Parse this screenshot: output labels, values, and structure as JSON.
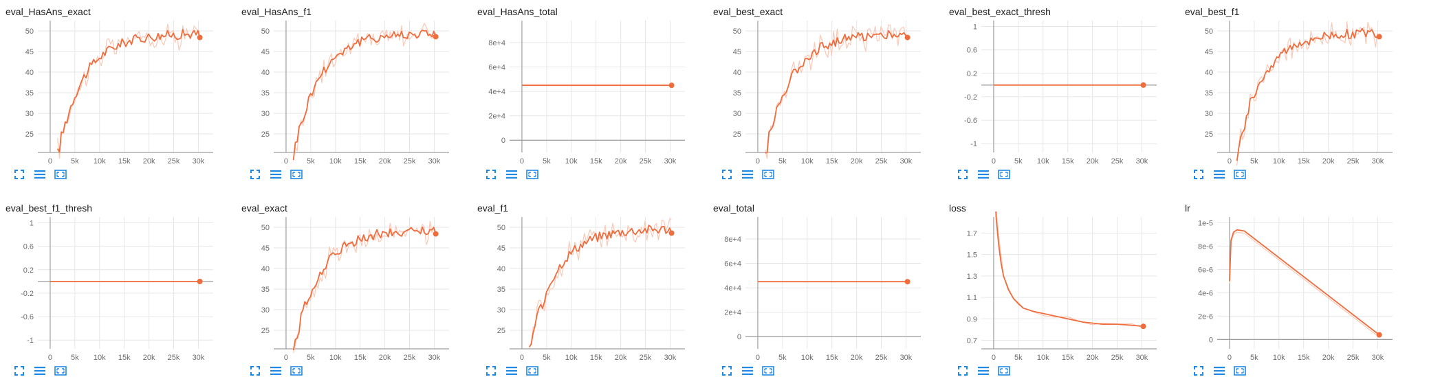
{
  "colors": {
    "line": "#ef6c3d",
    "raw": "#f9c9b7",
    "axis": "#9e9e9e",
    "grid": "#e6e6e6",
    "icon": "#1e88e5"
  },
  "toolbar_icons": [
    "fullscreen-icon",
    "data-table-icon",
    "fit-domain-icon"
  ],
  "chart_data": [
    {
      "title": "eval_HasAns_exact",
      "type": "line",
      "grid": true,
      "xticks": [
        "0",
        "5k",
        "10k",
        "15k",
        "20k",
        "25k",
        "30k"
      ],
      "xticks_values": [
        0,
        5000,
        10000,
        15000,
        20000,
        25000,
        30000
      ],
      "xlim": [
        -2500,
        33000
      ],
      "yticks": [
        "25",
        "30",
        "35",
        "40",
        "45",
        "50"
      ],
      "yticks_values": [
        25,
        30,
        35,
        40,
        45,
        50
      ],
      "ylim": [
        20.5,
        52.5
      ],
      "series": [
        {
          "shape": "eval",
          "start_y": 20,
          "end_y": 48.4
        }
      ]
    },
    {
      "title": "eval_HasAns_f1",
      "type": "line",
      "grid": true,
      "xticks": [
        "0",
        "5k",
        "10k",
        "15k",
        "20k",
        "25k",
        "30k"
      ],
      "xticks_values": [
        0,
        5000,
        10000,
        15000,
        20000,
        25000,
        30000
      ],
      "xlim": [
        -2500,
        33000
      ],
      "yticks": [
        "25",
        "30",
        "35",
        "40",
        "45",
        "50"
      ],
      "yticks_values": [
        25,
        30,
        35,
        40,
        45,
        50
      ],
      "ylim": [
        20.5,
        52.5
      ],
      "series": [
        {
          "shape": "eval",
          "start_y": 20,
          "end_y": 48.6
        }
      ]
    },
    {
      "title": "eval_HasAns_total",
      "type": "line",
      "grid": true,
      "xticks": [
        "0",
        "5k",
        "10k",
        "15k",
        "20k",
        "25k",
        "30k"
      ],
      "xticks_values": [
        0,
        5000,
        10000,
        15000,
        20000,
        25000,
        30000
      ],
      "xlim": [
        -2500,
        33000
      ],
      "yticks": [
        "0",
        "2e+4",
        "4e+4",
        "6e+4",
        "8e+4"
      ],
      "yticks_values": [
        0,
        20000,
        40000,
        60000,
        80000
      ],
      "ylim": [
        -10000,
        98000
      ],
      "series": [
        {
          "shape": "flat",
          "value": 45000,
          "x_start": 0,
          "x_end": 30300
        }
      ]
    },
    {
      "title": "eval_best_exact",
      "type": "line",
      "grid": true,
      "xticks": [
        "0",
        "5k",
        "10k",
        "15k",
        "20k",
        "25k",
        "30k"
      ],
      "xticks_values": [
        0,
        5000,
        10000,
        15000,
        20000,
        25000,
        30000
      ],
      "xlim": [
        -2500,
        33000
      ],
      "yticks": [
        "25",
        "30",
        "35",
        "40",
        "45",
        "50"
      ],
      "yticks_values": [
        25,
        30,
        35,
        40,
        45,
        50
      ],
      "ylim": [
        20.5,
        52.5
      ],
      "series": [
        {
          "shape": "eval",
          "start_y": 20,
          "end_y": 48.4
        }
      ]
    },
    {
      "title": "eval_best_exact_thresh",
      "type": "line",
      "grid": true,
      "xticks": [
        "0",
        "5k",
        "10k",
        "15k",
        "20k",
        "25k",
        "30k"
      ],
      "xticks_values": [
        0,
        5000,
        10000,
        15000,
        20000,
        25000,
        30000
      ],
      "xlim": [
        -2500,
        33000
      ],
      "yticks": [
        "-1",
        "-0.6",
        "-0.2",
        "0.2",
        "0.6",
        "1"
      ],
      "yticks_values": [
        -1,
        -0.6,
        -0.2,
        0.2,
        0.6,
        1
      ],
      "ylim": [
        -1.15,
        1.1
      ],
      "series": [
        {
          "shape": "flat",
          "value": 0,
          "x_start": 0,
          "x_end": 30300
        }
      ]
    },
    {
      "title": "eval_best_f1",
      "type": "line",
      "grid": true,
      "xticks": [
        "0",
        "5k",
        "10k",
        "15k",
        "20k",
        "25k",
        "30k"
      ],
      "xticks_values": [
        0,
        5000,
        10000,
        15000,
        20000,
        25000,
        30000
      ],
      "xlim": [
        -2500,
        33000
      ],
      "yticks": [
        "25",
        "30",
        "35",
        "40",
        "45",
        "50"
      ],
      "yticks_values": [
        25,
        30,
        35,
        40,
        45,
        50
      ],
      "ylim": [
        20.5,
        52.5
      ],
      "series": [
        {
          "shape": "eval",
          "start_y": 20,
          "end_y": 48.6
        }
      ]
    },
    {
      "title": "eval_best_f1_thresh",
      "type": "line",
      "grid": true,
      "xticks": [
        "0",
        "5k",
        "10k",
        "15k",
        "20k",
        "25k",
        "30k"
      ],
      "xticks_values": [
        0,
        5000,
        10000,
        15000,
        20000,
        25000,
        30000
      ],
      "xlim": [
        -2500,
        33000
      ],
      "yticks": [
        "-1",
        "-0.6",
        "-0.2",
        "0.2",
        "0.6",
        "1"
      ],
      "yticks_values": [
        -1,
        -0.6,
        -0.2,
        0.2,
        0.6,
        1
      ],
      "ylim": [
        -1.15,
        1.1
      ],
      "series": [
        {
          "shape": "flat",
          "value": 0,
          "x_start": 0,
          "x_end": 30300
        }
      ]
    },
    {
      "title": "eval_exact",
      "type": "line",
      "grid": true,
      "xticks": [
        "0",
        "5k",
        "10k",
        "15k",
        "20k",
        "25k",
        "30k"
      ],
      "xticks_values": [
        0,
        5000,
        10000,
        15000,
        20000,
        25000,
        30000
      ],
      "xlim": [
        -2500,
        33000
      ],
      "yticks": [
        "25",
        "30",
        "35",
        "40",
        "45",
        "50"
      ],
      "yticks_values": [
        25,
        30,
        35,
        40,
        45,
        50
      ],
      "ylim": [
        20.5,
        52.5
      ],
      "series": [
        {
          "shape": "eval",
          "start_y": 20,
          "end_y": 48.4
        }
      ]
    },
    {
      "title": "eval_f1",
      "type": "line",
      "grid": true,
      "xticks": [
        "0",
        "5k",
        "10k",
        "15k",
        "20k",
        "25k",
        "30k"
      ],
      "xticks_values": [
        0,
        5000,
        10000,
        15000,
        20000,
        25000,
        30000
      ],
      "xlim": [
        -2500,
        33000
      ],
      "yticks": [
        "25",
        "30",
        "35",
        "40",
        "45",
        "50"
      ],
      "yticks_values": [
        25,
        30,
        35,
        40,
        45,
        50
      ],
      "ylim": [
        20.5,
        52.5
      ],
      "series": [
        {
          "shape": "eval",
          "start_y": 20,
          "end_y": 48.6
        }
      ]
    },
    {
      "title": "eval_total",
      "type": "line",
      "grid": true,
      "xticks": [
        "0",
        "5k",
        "10k",
        "15k",
        "20k",
        "25k",
        "30k"
      ],
      "xticks_values": [
        0,
        5000,
        10000,
        15000,
        20000,
        25000,
        30000
      ],
      "xlim": [
        -2500,
        33000
      ],
      "yticks": [
        "0",
        "2e+4",
        "4e+4",
        "6e+4",
        "8e+4"
      ],
      "yticks_values": [
        0,
        20000,
        40000,
        60000,
        80000
      ],
      "ylim": [
        -10000,
        98000
      ],
      "series": [
        {
          "shape": "flat",
          "value": 45000,
          "x_start": 0,
          "x_end": 30300
        }
      ]
    },
    {
      "title": "loss",
      "type": "line",
      "grid": true,
      "xticks": [
        "0",
        "5k",
        "10k",
        "15k",
        "20k",
        "25k",
        "30k"
      ],
      "xticks_values": [
        0,
        5000,
        10000,
        15000,
        20000,
        25000,
        30000
      ],
      "xlim": [
        -2500,
        33000
      ],
      "yticks": [
        "0.7",
        "0.9",
        "1.1",
        "1.3",
        "1.5",
        "1.7"
      ],
      "yticks_values": [
        0.7,
        0.9,
        1.1,
        1.3,
        1.5,
        1.7
      ],
      "ylim": [
        0.62,
        1.85
      ],
      "series": [
        {
          "shape": "loss",
          "x": [
            0,
            500,
            1000,
            1500,
            2000,
            3000,
            4000,
            5000,
            6000,
            8000,
            10000,
            12000,
            15000,
            18000,
            20000,
            22000,
            25000,
            28000,
            30300
          ],
          "y": [
            2.4,
            1.85,
            1.6,
            1.42,
            1.3,
            1.17,
            1.09,
            1.04,
            1.0,
            0.97,
            0.95,
            0.93,
            0.9,
            0.87,
            0.86,
            0.85,
            0.85,
            0.84,
            0.83
          ]
        }
      ]
    },
    {
      "title": "lr",
      "type": "line",
      "grid": true,
      "xticks": [
        "0",
        "5k",
        "10k",
        "15k",
        "20k",
        "25k",
        "30k"
      ],
      "xticks_values": [
        0,
        5000,
        10000,
        15000,
        20000,
        25000,
        30000
      ],
      "xlim": [
        -2500,
        33000
      ],
      "yticks": [
        "0",
        "2e-6",
        "4e-6",
        "6e-6",
        "8e-6",
        "1e-5"
      ],
      "yticks_values": [
        0,
        2e-06,
        4e-06,
        6e-06,
        8e-06,
        1e-05
      ],
      "ylim": [
        -8e-07,
        1.05e-05
      ],
      "series": [
        {
          "shape": "lr",
          "x": [
            0,
            300,
            800,
            1500,
            3000,
            30300
          ],
          "y": [
            5e-06,
            8.5e-06,
            9.2e-06,
            9.4e-06,
            9.3e-06,
            4e-07
          ]
        }
      ]
    }
  ]
}
